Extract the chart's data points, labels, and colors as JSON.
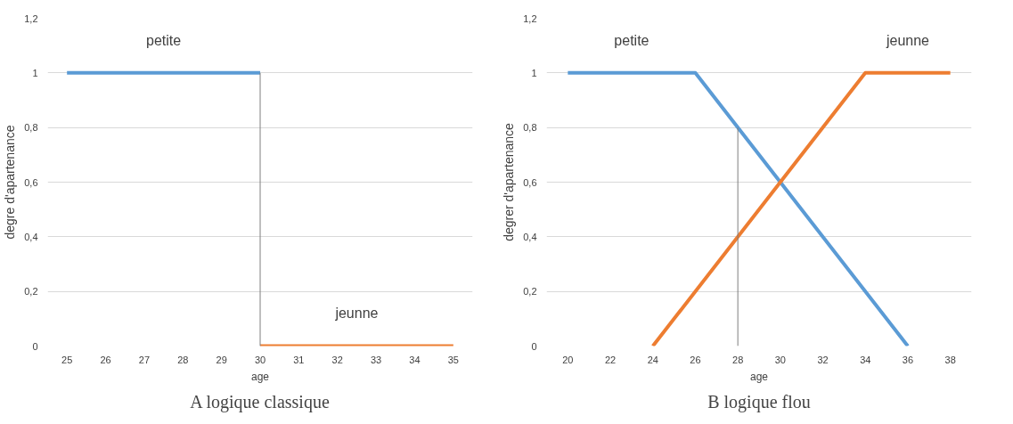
{
  "chart_data": [
    {
      "type": "line",
      "title": "A logique classique",
      "xlabel": "age",
      "ylabel": "degre d'apartenance",
      "xlim": [
        24.5,
        35.5
      ],
      "xticks": [
        25,
        26,
        27,
        28,
        29,
        30,
        31,
        32,
        33,
        34,
        35
      ],
      "ylim": [
        0,
        1.2
      ],
      "yticks": [
        0,
        {
          "value": 0.2,
          "label": "0,2"
        },
        {
          "value": 0.4,
          "label": "0,4"
        },
        {
          "value": 0.6,
          "label": "0,6"
        },
        {
          "value": 0.8,
          "label": "0,8"
        },
        1,
        {
          "value": 1.2,
          "label": "1,2"
        }
      ],
      "grid": "y",
      "marker": "none",
      "line_style": "solid",
      "series": [
        {
          "name": "petite",
          "color": "#5b9bd5",
          "x": [
            25,
            30
          ],
          "values": [
            1,
            1
          ]
        },
        {
          "name": "jeunne",
          "color": "#ed7d31",
          "x": [
            30,
            35
          ],
          "values": [
            0,
            0
          ]
        },
        {
          "color": "#7f7f7f",
          "x": [
            30,
            30
          ],
          "values": [
            0,
            1
          ]
        }
      ]
    },
    {
      "type": "line",
      "title": "B logique flou",
      "xlabel": "age",
      "ylabel": "degrer d'apartenance",
      "xlim": [
        19,
        39
      ],
      "xticks": [
        20,
        22,
        24,
        26,
        28,
        30,
        32,
        34,
        36,
        38
      ],
      "ylim": [
        0,
        1.2
      ],
      "yticks": [
        0,
        {
          "value": 0.2,
          "label": "0,2"
        },
        {
          "value": 0.4,
          "label": "0,4"
        },
        {
          "value": 0.6,
          "label": "0,6"
        },
        {
          "value": 0.8,
          "label": "0,8"
        },
        1,
        {
          "value": 1.2,
          "label": "1,2"
        }
      ],
      "grid": "y",
      "marker": "none",
      "line_style": "solid",
      "series": [
        {
          "name": "petite",
          "color": "#5b9bd5",
          "x": [
            20,
            26,
            36
          ],
          "values": [
            1,
            1,
            0
          ]
        },
        {
          "name": "jeunne",
          "color": "#ed7d31",
          "x": [
            24,
            34,
            38
          ],
          "values": [
            0,
            1,
            1
          ]
        },
        {
          "color": "#7f7f7f",
          "x": [
            28,
            28
          ],
          "values": [
            0,
            0.8
          ]
        }
      ]
    }
  ]
}
